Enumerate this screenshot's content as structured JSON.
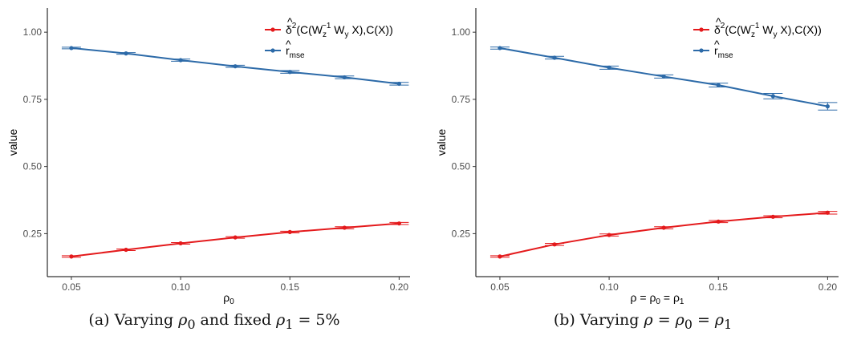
{
  "chart_data": [
    {
      "type": "line",
      "ylabel": "value",
      "xlabel": "ρ0",
      "caption": "(a) Varying ρ0 and fixed ρ1 = 5%",
      "x": [
        0.05,
        0.075,
        0.1,
        0.125,
        0.15,
        0.175,
        0.2
      ],
      "xlim": [
        0.039,
        0.205
      ],
      "ylim": [
        0.09,
        1.09
      ],
      "x_ticks": [
        "0.05",
        "0.10",
        "0.15",
        "0.20"
      ],
      "y_ticks": [
        "0.25",
        "0.50",
        "0.75",
        "1.00"
      ],
      "grid": false,
      "legend_position": "top-right",
      "series": [
        {
          "name": "δ̂²(C(Wz⁻¹ Wy X),C(X))",
          "color": "#e41a1c",
          "values": [
            0.165,
            0.19,
            0.214,
            0.236,
            0.256,
            0.272,
            0.288
          ],
          "err": [
            0.003,
            0.003,
            0.003,
            0.003,
            0.003,
            0.004,
            0.004
          ]
        },
        {
          "name": "r̂mse",
          "color": "#2c6aa8",
          "values": [
            0.941,
            0.921,
            0.896,
            0.873,
            0.852,
            0.832,
            0.808
          ],
          "err": [
            0.003,
            0.003,
            0.004,
            0.004,
            0.005,
            0.005,
            0.005
          ]
        }
      ]
    },
    {
      "type": "line",
      "ylabel": "value",
      "xlabel": "ρ = ρ0 = ρ1",
      "caption": "(b) Varying ρ = ρ0 = ρ1",
      "x": [
        0.05,
        0.075,
        0.1,
        0.125,
        0.15,
        0.175,
        0.2
      ],
      "xlim": [
        0.039,
        0.205
      ],
      "ylim": [
        0.09,
        1.09
      ],
      "x_ticks": [
        "0.05",
        "0.10",
        "0.15",
        "0.20"
      ],
      "y_ticks": [
        "0.25",
        "0.50",
        "0.75",
        "1.00"
      ],
      "grid": false,
      "legend_position": "top-right",
      "series": [
        {
          "name": "δ̂²(C(Wz⁻¹ Wy X),C(X))",
          "color": "#e41a1c",
          "values": [
            0.165,
            0.21,
            0.245,
            0.272,
            0.295,
            0.313,
            0.328
          ],
          "err": [
            0.003,
            0.004,
            0.004,
            0.004,
            0.004,
            0.004,
            0.005
          ]
        },
        {
          "name": "r̂mse",
          "color": "#2c6aa8",
          "values": [
            0.941,
            0.905,
            0.868,
            0.835,
            0.803,
            0.762,
            0.724
          ],
          "err": [
            0.004,
            0.005,
            0.006,
            0.006,
            0.007,
            0.01,
            0.014
          ]
        }
      ]
    }
  ]
}
